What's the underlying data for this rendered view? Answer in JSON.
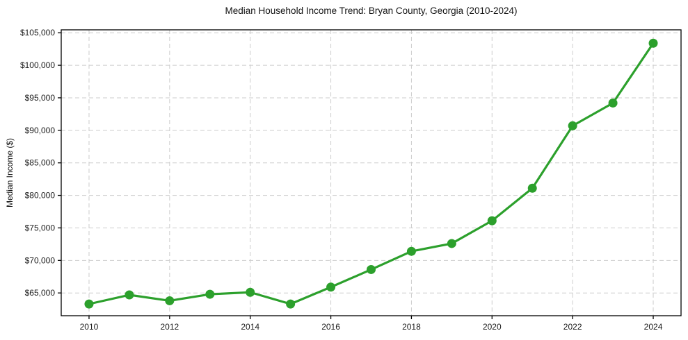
{
  "chart_data": {
    "type": "line",
    "title": "Median Household Income Trend: Bryan County, Georgia (2010-2024)",
    "xlabel": "",
    "ylabel": "Median Income ($)",
    "x": [
      2010,
      2011,
      2012,
      2013,
      2014,
      2015,
      2016,
      2017,
      2018,
      2019,
      2020,
      2021,
      2022,
      2023,
      2024
    ],
    "values": [
      63300,
      64700,
      63800,
      64800,
      65100,
      63300,
      65900,
      68600,
      71400,
      72600,
      76100,
      81100,
      90700,
      94200,
      103400
    ],
    "x_ticks": [
      2010,
      2012,
      2014,
      2016,
      2018,
      2020,
      2022,
      2024
    ],
    "x_tick_labels": [
      "2010",
      "2012",
      "2014",
      "2016",
      "2018",
      "2020",
      "2022",
      "2024"
    ],
    "y_ticks": [
      65000,
      70000,
      75000,
      80000,
      85000,
      90000,
      95000,
      100000,
      105000
    ],
    "y_tick_labels": [
      "$65,000",
      "$70,000",
      "$75,000",
      "$80,000",
      "$85,000",
      "$90,000",
      "$95,000",
      "$100,000",
      "$105,000"
    ],
    "xlim": [
      2009.31,
      2024.69
    ],
    "ylim": [
      61500,
      105450
    ],
    "grid": true,
    "legend": null,
    "marker": "circle",
    "line_color": "#2ca02c",
    "grid_color": "#cccccc",
    "axis_color": "#000000",
    "text_color": "#1a1a1a"
  }
}
